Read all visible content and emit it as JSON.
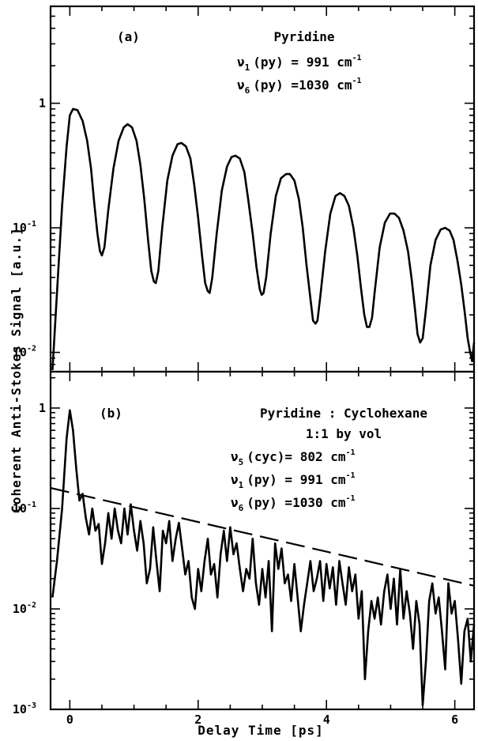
{
  "chart_data": [
    {
      "type": "line",
      "panel": "(a)",
      "annotations": {
        "panel_label": "(a)",
        "sample": "Pyridine",
        "lines": [
          {
            "mode": "ν",
            "sub": "1",
            "label": "(py) =",
            "value": " 991 cm",
            "exp": "-1"
          },
          {
            "mode": "ν",
            "sub": "6",
            "label": "(py) =",
            "value": "1030 cm",
            "exp": "-1"
          }
        ]
      },
      "xlim": [
        -0.3,
        6.3
      ],
      "ylim": [
        0.007,
        6
      ],
      "yscale": "log",
      "yticks": [
        {
          "value": 1,
          "label": "1"
        },
        {
          "value": 0.1,
          "label": "10",
          "exp": "-1"
        },
        {
          "value": 0.01,
          "label": "10",
          "exp": "-2"
        }
      ],
      "series": [
        {
          "style": "solid",
          "x": [
            -0.27,
            -0.2,
            -0.12,
            -0.05,
            0.0,
            0.05,
            0.12,
            0.2,
            0.27,
            0.33,
            0.38,
            0.43,
            0.47,
            0.5,
            0.54,
            0.6,
            0.68,
            0.76,
            0.84,
            0.9,
            0.97,
            1.04,
            1.1,
            1.16,
            1.22,
            1.27,
            1.31,
            1.34,
            1.38,
            1.44,
            1.52,
            1.6,
            1.68,
            1.74,
            1.81,
            1.88,
            1.94,
            2.0,
            2.06,
            2.11,
            2.15,
            2.18,
            2.22,
            2.29,
            2.37,
            2.45,
            2.52,
            2.58,
            2.65,
            2.72,
            2.78,
            2.85,
            2.91,
            2.96,
            2.99,
            3.02,
            3.06,
            3.13,
            3.21,
            3.29,
            3.37,
            3.43,
            3.5,
            3.57,
            3.63,
            3.69,
            3.75,
            3.79,
            3.83,
            3.86,
            3.9,
            3.98,
            4.06,
            4.14,
            4.21,
            4.28,
            4.35,
            4.42,
            4.48,
            4.54,
            4.59,
            4.63,
            4.67,
            4.71,
            4.75,
            4.83,
            4.91,
            4.99,
            5.06,
            5.13,
            5.2,
            5.27,
            5.33,
            5.38,
            5.42,
            5.46,
            5.5,
            5.55,
            5.62,
            5.7,
            5.78,
            5.85,
            5.92,
            5.98,
            6.04,
            6.1,
            6.16,
            6.2,
            6.24,
            6.27,
            6.3
          ],
          "y": [
            0.0072,
            0.03,
            0.15,
            0.45,
            0.8,
            0.9,
            0.88,
            0.72,
            0.5,
            0.3,
            0.16,
            0.09,
            0.065,
            0.06,
            0.07,
            0.14,
            0.3,
            0.5,
            0.64,
            0.68,
            0.64,
            0.5,
            0.32,
            0.17,
            0.08,
            0.045,
            0.037,
            0.036,
            0.045,
            0.1,
            0.24,
            0.38,
            0.47,
            0.48,
            0.45,
            0.36,
            0.22,
            0.12,
            0.06,
            0.036,
            0.031,
            0.03,
            0.04,
            0.09,
            0.2,
            0.31,
            0.37,
            0.38,
            0.36,
            0.28,
            0.17,
            0.09,
            0.048,
            0.032,
            0.029,
            0.03,
            0.04,
            0.09,
            0.18,
            0.25,
            0.27,
            0.27,
            0.24,
            0.17,
            0.1,
            0.05,
            0.027,
            0.018,
            0.017,
            0.018,
            0.027,
            0.065,
            0.13,
            0.18,
            0.19,
            0.18,
            0.15,
            0.1,
            0.06,
            0.032,
            0.02,
            0.016,
            0.016,
            0.019,
            0.03,
            0.07,
            0.11,
            0.13,
            0.13,
            0.12,
            0.095,
            0.065,
            0.038,
            0.022,
            0.014,
            0.012,
            0.013,
            0.022,
            0.05,
            0.08,
            0.097,
            0.1,
            0.095,
            0.08,
            0.055,
            0.035,
            0.02,
            0.013,
            0.01,
            0.0085,
            0.012
          ]
        }
      ]
    },
    {
      "type": "line",
      "panel": "(b)",
      "annotations": {
        "panel_label": "(b)",
        "sample": "Pyridine : Cyclohexane",
        "ratio": "1:1 by vol",
        "lines": [
          {
            "mode": "ν",
            "sub": "5",
            "label": "(cyc)=",
            "value": " 802 cm",
            "exp": "-1"
          },
          {
            "mode": "ν",
            "sub": "1",
            "label": "(py) =",
            "value": " 991 cm",
            "exp": "-1"
          },
          {
            "mode": "ν",
            "sub": "6",
            "label": "(py) =",
            "value": "1030 cm",
            "exp": "-1"
          }
        ]
      },
      "xlim": [
        -0.3,
        6.3
      ],
      "ylim": [
        0.001,
        2.3
      ],
      "yscale": "log",
      "xlabel": "Delay Time [ps]",
      "xticks": [
        {
          "value": 0,
          "label": "0"
        },
        {
          "value": 2,
          "label": "2"
        },
        {
          "value": 4,
          "label": "4"
        },
        {
          "value": 6,
          "label": "6"
        }
      ],
      "yticks": [
        {
          "value": 1,
          "label": "1"
        },
        {
          "value": 0.1,
          "label": "10",
          "exp": "-1"
        },
        {
          "value": 0.01,
          "label": "10",
          "exp": "-2"
        },
        {
          "value": 0.001,
          "label": "10",
          "exp": "-3"
        }
      ],
      "series": [
        {
          "style": "solid",
          "x": [
            -0.27,
            -0.2,
            -0.12,
            -0.05,
            0.0,
            0.05,
            0.1,
            0.15,
            0.2,
            0.25,
            0.3,
            0.35,
            0.4,
            0.45,
            0.5,
            0.55,
            0.6,
            0.65,
            0.7,
            0.75,
            0.8,
            0.85,
            0.9,
            0.95,
            1.0,
            1.05,
            1.1,
            1.15,
            1.2,
            1.25,
            1.3,
            1.35,
            1.4,
            1.45,
            1.5,
            1.55,
            1.6,
            1.65,
            1.7,
            1.75,
            1.8,
            1.85,
            1.9,
            1.95,
            2.0,
            2.05,
            2.1,
            2.15,
            2.2,
            2.25,
            2.3,
            2.35,
            2.4,
            2.45,
            2.5,
            2.55,
            2.6,
            2.65,
            2.7,
            2.75,
            2.8,
            2.85,
            2.9,
            2.95,
            3.0,
            3.05,
            3.1,
            3.15,
            3.2,
            3.25,
            3.3,
            3.35,
            3.4,
            3.45,
            3.5,
            3.55,
            3.6,
            3.65,
            3.7,
            3.75,
            3.8,
            3.85,
            3.9,
            3.95,
            4.0,
            4.05,
            4.1,
            4.15,
            4.2,
            4.25,
            4.3,
            4.35,
            4.4,
            4.45,
            4.5,
            4.55,
            4.6,
            4.65,
            4.7,
            4.75,
            4.8,
            4.85,
            4.9,
            4.95,
            5.0,
            5.05,
            5.1,
            5.15,
            5.2,
            5.25,
            5.3,
            5.35,
            5.4,
            5.45,
            5.5,
            5.55,
            5.6,
            5.65,
            5.7,
            5.75,
            5.8,
            5.85,
            5.9,
            5.95,
            6.0,
            6.05,
            6.1,
            6.15,
            6.2,
            6.25,
            6.3
          ],
          "y": [
            0.013,
            0.03,
            0.1,
            0.5,
            0.95,
            0.6,
            0.25,
            0.12,
            0.14,
            0.08,
            0.055,
            0.1,
            0.06,
            0.07,
            0.028,
            0.045,
            0.09,
            0.05,
            0.1,
            0.06,
            0.045,
            0.1,
            0.055,
            0.11,
            0.06,
            0.038,
            0.075,
            0.045,
            0.018,
            0.025,
            0.065,
            0.03,
            0.015,
            0.06,
            0.045,
            0.075,
            0.03,
            0.05,
            0.072,
            0.04,
            0.022,
            0.03,
            0.013,
            0.01,
            0.025,
            0.015,
            0.03,
            0.05,
            0.022,
            0.028,
            0.013,
            0.035,
            0.06,
            0.03,
            0.065,
            0.035,
            0.045,
            0.025,
            0.015,
            0.025,
            0.02,
            0.05,
            0.018,
            0.011,
            0.025,
            0.013,
            0.03,
            0.006,
            0.045,
            0.025,
            0.04,
            0.018,
            0.022,
            0.012,
            0.028,
            0.013,
            0.006,
            0.011,
            0.018,
            0.03,
            0.015,
            0.02,
            0.03,
            0.012,
            0.028,
            0.016,
            0.026,
            0.011,
            0.03,
            0.018,
            0.011,
            0.026,
            0.015,
            0.022,
            0.008,
            0.015,
            0.002,
            0.006,
            0.012,
            0.008,
            0.013,
            0.007,
            0.015,
            0.022,
            0.01,
            0.02,
            0.007,
            0.025,
            0.008,
            0.015,
            0.009,
            0.004,
            0.012,
            0.007,
            0.0011,
            0.003,
            0.012,
            0.018,
            0.009,
            0.013,
            0.006,
            0.0025,
            0.018,
            0.009,
            0.012,
            0.005,
            0.0018,
            0.006,
            0.008,
            0.003,
            0.007
          ]
        },
        {
          "style": "dashed",
          "x": [
            -0.3,
            6.3
          ],
          "y": [
            0.16,
            0.017
          ]
        }
      ]
    }
  ],
  "ylabel": "Coherent Anti-Stokes Signal [a.u.]"
}
